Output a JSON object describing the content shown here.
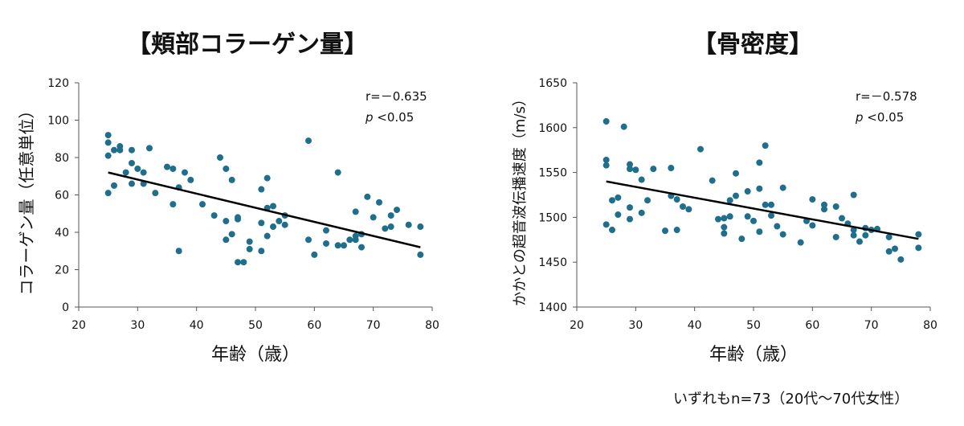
{
  "footnote": "いずれもn=73（20代～70代女性）",
  "chart_data": [
    {
      "type": "scatter",
      "title": "【頬部コラーゲン量】",
      "xlabel": "年齢（歳）",
      "ylabel": "コラーゲン量（任意単位）",
      "xlim": [
        20,
        80
      ],
      "ylim": [
        0,
        120
      ],
      "xticks": [
        20,
        30,
        40,
        50,
        60,
        70,
        80
      ],
      "yticks": [
        0,
        20,
        40,
        60,
        80,
        100,
        120
      ],
      "annotation_r": "r=－0.635",
      "annotation_p_italic": "p",
      "annotation_p_rest": " <0.05",
      "point_color": "#1f6e8c",
      "trendline": {
        "x": [
          25,
          78
        ],
        "y": [
          72,
          32
        ]
      },
      "points": [
        [
          25,
          92
        ],
        [
          25,
          88
        ],
        [
          25,
          81
        ],
        [
          25,
          61
        ],
        [
          26,
          84
        ],
        [
          26,
          65
        ],
        [
          27,
          86
        ],
        [
          27,
          84
        ],
        [
          28,
          72
        ],
        [
          29,
          84
        ],
        [
          29,
          77
        ],
        [
          29,
          66
        ],
        [
          30,
          74
        ],
        [
          31,
          72
        ],
        [
          31,
          66
        ],
        [
          32,
          85
        ],
        [
          33,
          61
        ],
        [
          35,
          75
        ],
        [
          36,
          74
        ],
        [
          36,
          55
        ],
        [
          37,
          64
        ],
        [
          37,
          30
        ],
        [
          38,
          72
        ],
        [
          39,
          68
        ],
        [
          41,
          55
        ],
        [
          43,
          49
        ],
        [
          44,
          80
        ],
        [
          45,
          74
        ],
        [
          45,
          46
        ],
        [
          45,
          36
        ],
        [
          46,
          68
        ],
        [
          46,
          39
        ],
        [
          47,
          48
        ],
        [
          47,
          47
        ],
        [
          47,
          24
        ],
        [
          48,
          24
        ],
        [
          49,
          35
        ],
        [
          49,
          31
        ],
        [
          51,
          63
        ],
        [
          51,
          45
        ],
        [
          51,
          30
        ],
        [
          52,
          69
        ],
        [
          52,
          53
        ],
        [
          52,
          38
        ],
        [
          53,
          54
        ],
        [
          53,
          43
        ],
        [
          54,
          46
        ],
        [
          55,
          49
        ],
        [
          55,
          44
        ],
        [
          59,
          89
        ],
        [
          59,
          36
        ],
        [
          60,
          28
        ],
        [
          62,
          41
        ],
        [
          62,
          34
        ],
        [
          64,
          72
        ],
        [
          64,
          33
        ],
        [
          65,
          33
        ],
        [
          67,
          51
        ],
        [
          67,
          38
        ],
        [
          67,
          36
        ],
        [
          68,
          39
        ],
        [
          68,
          32
        ],
        [
          69,
          59
        ],
        [
          70,
          48
        ],
        [
          71,
          56
        ],
        [
          73,
          49
        ],
        [
          73,
          43
        ],
        [
          74,
          52
        ],
        [
          76,
          44
        ],
        [
          78,
          43
        ],
        [
          78,
          28
        ],
        [
          72,
          42
        ],
        [
          66,
          36
        ]
      ]
    },
    {
      "type": "scatter",
      "title": "【骨密度】",
      "xlabel": "年齢（歳）",
      "ylabel": "かかとの超音波伝播速度（m/s）",
      "xlim": [
        20,
        80
      ],
      "ylim": [
        1400,
        1650
      ],
      "xticks": [
        20,
        30,
        40,
        50,
        60,
        70,
        80
      ],
      "yticks": [
        1400,
        1450,
        1500,
        1550,
        1600,
        1650
      ],
      "annotation_r": "r=－0.578",
      "annotation_p_italic": "p",
      "annotation_p_rest": " <0.05",
      "point_color": "#1f6e8c",
      "trendline": {
        "x": [
          25,
          78
        ],
        "y": [
          1540,
          1476
        ]
      },
      "points": [
        [
          25,
          1607
        ],
        [
          25,
          1564
        ],
        [
          25,
          1558
        ],
        [
          25,
          1492
        ],
        [
          26,
          1519
        ],
        [
          26,
          1486
        ],
        [
          27,
          1522
        ],
        [
          27,
          1503
        ],
        [
          28,
          1601
        ],
        [
          29,
          1559
        ],
        [
          29,
          1554
        ],
        [
          29,
          1511
        ],
        [
          29,
          1498
        ],
        [
          30,
          1553
        ],
        [
          31,
          1542
        ],
        [
          31,
          1505
        ],
        [
          32,
          1519
        ],
        [
          33,
          1554
        ],
        [
          35,
          1485
        ],
        [
          36,
          1555
        ],
        [
          36,
          1524
        ],
        [
          37,
          1520
        ],
        [
          37,
          1486
        ],
        [
          38,
          1512
        ],
        [
          39,
          1509
        ],
        [
          41,
          1576
        ],
        [
          43,
          1541
        ],
        [
          44,
          1498
        ],
        [
          45,
          1499
        ],
        [
          45,
          1489
        ],
        [
          45,
          1482
        ],
        [
          46,
          1519
        ],
        [
          46,
          1501
        ],
        [
          47,
          1549
        ],
        [
          47,
          1524
        ],
        [
          48,
          1476
        ],
        [
          49,
          1529
        ],
        [
          49,
          1501
        ],
        [
          50,
          1496
        ],
        [
          51,
          1561
        ],
        [
          51,
          1532
        ],
        [
          51,
          1484
        ],
        [
          52,
          1580
        ],
        [
          52,
          1514
        ],
        [
          53,
          1514
        ],
        [
          53,
          1502
        ],
        [
          54,
          1490
        ],
        [
          55,
          1533
        ],
        [
          55,
          1481
        ],
        [
          58,
          1472
        ],
        [
          59,
          1496
        ],
        [
          60,
          1520
        ],
        [
          60,
          1491
        ],
        [
          62,
          1514
        ],
        [
          62,
          1509
        ],
        [
          64,
          1512
        ],
        [
          64,
          1478
        ],
        [
          65,
          1499
        ],
        [
          67,
          1525
        ],
        [
          67,
          1486
        ],
        [
          67,
          1480
        ],
        [
          68,
          1473
        ],
        [
          69,
          1480
        ],
        [
          69,
          1488
        ],
        [
          70,
          1486
        ],
        [
          71,
          1487
        ],
        [
          73,
          1478
        ],
        [
          73,
          1462
        ],
        [
          74,
          1465
        ],
        [
          75,
          1453
        ],
        [
          78,
          1481
        ],
        [
          78,
          1466
        ],
        [
          66,
          1493
        ]
      ]
    }
  ]
}
